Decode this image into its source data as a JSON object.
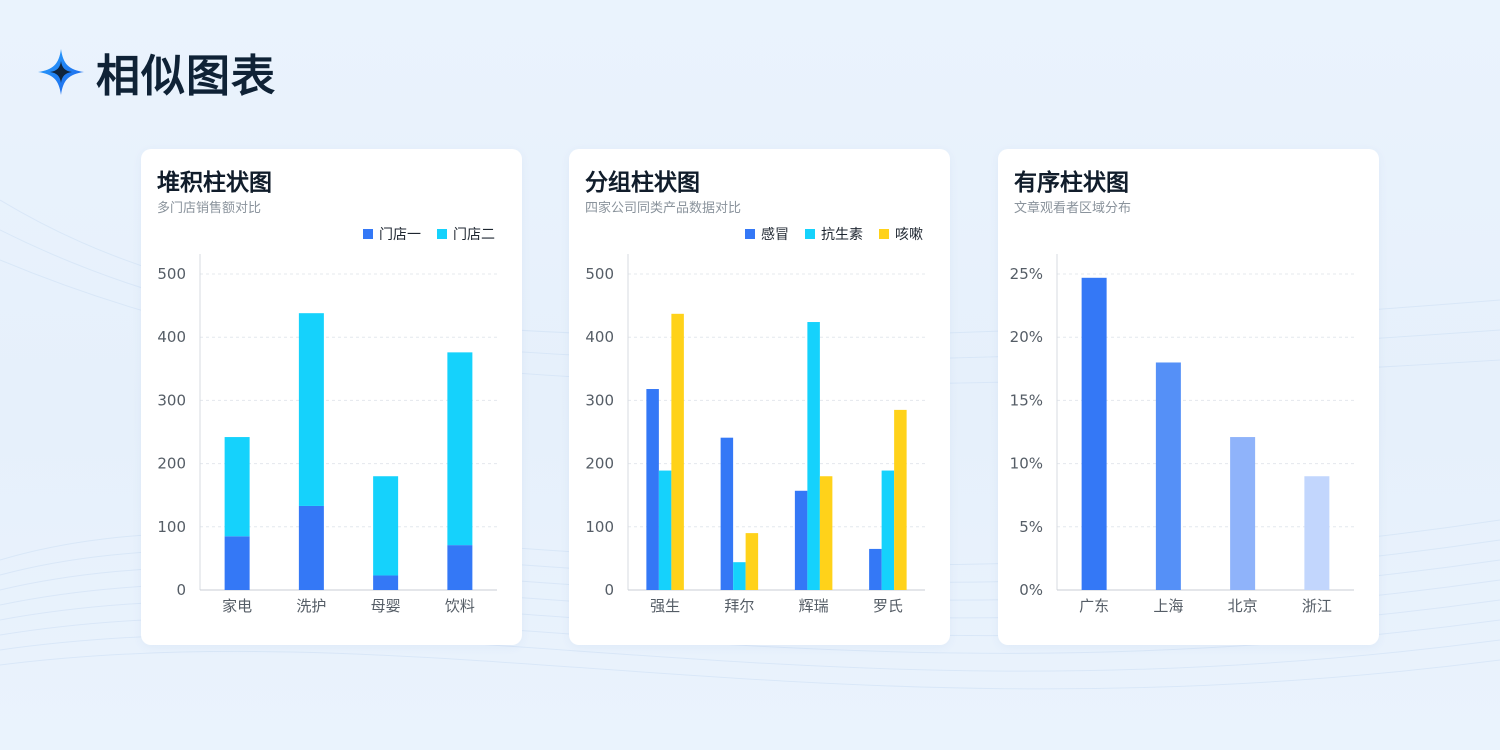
{
  "page": {
    "title": "相似图表",
    "icon": "sparkle-icon",
    "accent": "#1f78f0"
  },
  "colors": {
    "blue": "#3478f6",
    "cyan": "#15d2fc",
    "yellow": "#ffd21a",
    "ordered": [
      "#3478f6",
      "#5590f7",
      "#8fb3fa",
      "#c2d6fd"
    ]
  },
  "cards": [
    {
      "title": "堆积柱状图",
      "subtitle": "多门店销售额对比",
      "legend": [
        {
          "label": "门店一",
          "color": "#3478f6"
        },
        {
          "label": "门店二",
          "color": "#15d2fc"
        }
      ]
    },
    {
      "title": "分组柱状图",
      "subtitle": "四家公司同类产品数据对比",
      "legend": [
        {
          "label": "感冒",
          "color": "#3478f6"
        },
        {
          "label": "抗生素",
          "color": "#15d2fc"
        },
        {
          "label": "咳嗽",
          "color": "#ffd21a"
        }
      ]
    },
    {
      "title": "有序柱状图",
      "subtitle": "文章观看者区域分布",
      "legend": []
    }
  ],
  "chart_data": [
    {
      "type": "bar",
      "stacked": true,
      "categories": [
        "家电",
        "洗护",
        "母婴",
        "饮料"
      ],
      "series": [
        {
          "name": "门店一",
          "values": [
            85,
            133,
            23,
            71
          ]
        },
        {
          "name": "门店二",
          "values": [
            157,
            305,
            157,
            305
          ]
        }
      ],
      "ylim": [
        0,
        500
      ],
      "yticks": [
        "0",
        "100",
        "200",
        "300",
        "400",
        "500"
      ],
      "grid": true,
      "legend_position": "top-right"
    },
    {
      "type": "bar",
      "stacked": false,
      "categories": [
        "强生",
        "拜尔",
        "辉瑞",
        "罗氏"
      ],
      "series": [
        {
          "name": "感冒",
          "values": [
            318,
            241,
            157,
            65
          ]
        },
        {
          "name": "抗生素",
          "values": [
            189,
            44,
            424,
            189
          ]
        },
        {
          "name": "咳嗽",
          "values": [
            437,
            90,
            180,
            285
          ]
        }
      ],
      "ylim": [
        0,
        500
      ],
      "yticks": [
        "0",
        "100",
        "200",
        "300",
        "400",
        "500"
      ],
      "grid": true,
      "legend_position": "top-right"
    },
    {
      "type": "bar",
      "stacked": false,
      "categories": [
        "广东",
        "上海",
        "北京",
        "浙江"
      ],
      "values": [
        24.7,
        18.0,
        12.1,
        9.0
      ],
      "ylim": [
        0,
        25
      ],
      "yticks": [
        "0%",
        "5%",
        "10%",
        "15%",
        "20%",
        "25%"
      ],
      "grid": true
    }
  ]
}
